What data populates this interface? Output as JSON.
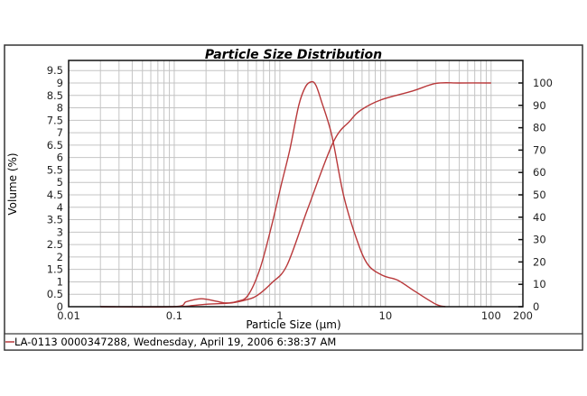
{
  "chart_data": {
    "type": "line",
    "title": "Particle Size Distribution",
    "xlabel": "Particle Size (µm)",
    "ylabel": "Volume (%)",
    "x_scale": "log",
    "xlim": [
      0.01,
      200
    ],
    "ylim": [
      0,
      9.5
    ],
    "y2lim": [
      0,
      100
    ],
    "x_ticks": [
      "0.01",
      "0.1",
      "1",
      "10",
      "100",
      "200"
    ],
    "y_ticks": [
      "0",
      "0.5",
      "1",
      "1.5",
      "2",
      "2.5",
      "3",
      "3.5",
      "4",
      "4.5",
      "5",
      "5.5",
      "6",
      "6.5",
      "7",
      "7.5",
      "8",
      "8.5",
      "9",
      "9.5"
    ],
    "y2_ticks": [
      "0",
      "10",
      "20",
      "30",
      "40",
      "50",
      "60",
      "70",
      "80",
      "90",
      "100"
    ],
    "grid": true,
    "legend_placement": "bottom",
    "legend": "LA-0113 0000347288, Wednesday, April 19, 2006 6:38:37 AM",
    "line_color": "#b8383a",
    "series": [
      {
        "axis": "left",
        "points": [
          [
            0.02,
            0
          ],
          [
            0.1,
            0
          ],
          [
            0.13,
            0.2
          ],
          [
            0.18,
            0.32
          ],
          [
            0.25,
            0.22
          ],
          [
            0.31,
            0.15
          ],
          [
            0.4,
            0.22
          ],
          [
            0.5,
            0.46
          ],
          [
            0.65,
            1.54
          ],
          [
            0.84,
            3.3
          ],
          [
            1.03,
            4.9
          ],
          [
            1.24,
            6.3
          ],
          [
            1.51,
            8.1
          ],
          [
            1.75,
            8.85
          ],
          [
            2.0,
            9.05
          ],
          [
            2.2,
            8.9
          ],
          [
            2.46,
            8.3
          ],
          [
            3.1,
            6.9
          ],
          [
            4.0,
            4.5
          ],
          [
            5.3,
            2.75
          ],
          [
            6.8,
            1.7
          ],
          [
            9.5,
            1.25
          ],
          [
            13,
            1.07
          ],
          [
            19.3,
            0.6
          ],
          [
            30,
            0.1
          ],
          [
            37,
            0
          ]
        ]
      },
      {
        "axis": "right",
        "points": [
          [
            0.02,
            0
          ],
          [
            0.1,
            0
          ],
          [
            0.15,
            0.5
          ],
          [
            0.2,
            1.1
          ],
          [
            0.35,
            1.7
          ],
          [
            0.5,
            3.3
          ],
          [
            0.61,
            5
          ],
          [
            0.84,
            10.7
          ],
          [
            1.17,
            18.6
          ],
          [
            1.83,
            43.6
          ],
          [
            3.2,
            73.5
          ],
          [
            4.6,
            83
          ],
          [
            5.9,
            88
          ],
          [
            9.1,
            92.5
          ],
          [
            18,
            96.4
          ],
          [
            30,
            99.8
          ],
          [
            50,
            100
          ],
          [
            100,
            100
          ]
        ]
      }
    ]
  }
}
